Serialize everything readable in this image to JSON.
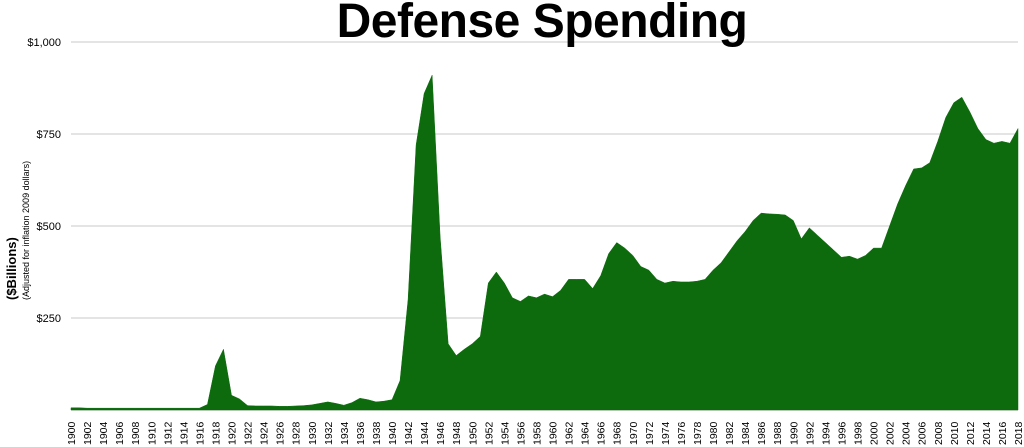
{
  "chart_data": {
    "type": "area",
    "title": "Defense Spending",
    "ylabel": "($Billions)",
    "ylabel_note": "(Adjusted for inflation 2009 dollars)",
    "xlabel": "",
    "ylim": [
      0,
      1000
    ],
    "yticks": [
      0,
      250,
      500,
      750,
      1000
    ],
    "ytick_labels": [
      "",
      "$250",
      "$500",
      "$750",
      "$1,000"
    ],
    "xlim": [
      1900,
      2018
    ],
    "xtick_labels": [
      "1900",
      "1902",
      "1904",
      "1906",
      "1908",
      "1910",
      "1912",
      "1914",
      "1916",
      "1918",
      "1920",
      "1922",
      "1924",
      "1926",
      "1928",
      "1930",
      "1932",
      "1934",
      "1936",
      "1938",
      "1940",
      "1942",
      "1944",
      "1946",
      "1948",
      "1950",
      "1952",
      "1954",
      "1956",
      "1958",
      "1960",
      "1962",
      "1964",
      "1966",
      "1968",
      "1970",
      "1972",
      "1974",
      "1976",
      "1978",
      "1980",
      "1982",
      "1984",
      "1986",
      "1988",
      "1990",
      "1992",
      "1994",
      "1996",
      "1998",
      "2000",
      "2002",
      "2004",
      "2006",
      "2008",
      "2010",
      "2012",
      "2014",
      "2016",
      "2018"
    ],
    "grid": true,
    "fill_color": "#0d6b0d",
    "series": [
      {
        "x": [
          1900,
          1901,
          1902,
          1903,
          1904,
          1905,
          1906,
          1907,
          1908,
          1909,
          1910,
          1911,
          1912,
          1913,
          1914,
          1915,
          1916,
          1917,
          1918,
          1919,
          1920,
          1921,
          1922,
          1923,
          1924,
          1925,
          1926,
          1927,
          1928,
          1929,
          1930,
          1931,
          1932,
          1933,
          1934,
          1935,
          1936,
          1937,
          1938,
          1939,
          1940,
          1941,
          1942,
          1943,
          1944,
          1945,
          1946,
          1947,
          1948,
          1949,
          1950,
          1951,
          1952,
          1953,
          1954,
          1955,
          1956,
          1957,
          1958,
          1959,
          1960,
          1961,
          1962,
          1963,
          1964,
          1965,
          1966,
          1967,
          1968,
          1969,
          1970,
          1971,
          1972,
          1973,
          1974,
          1975,
          1976,
          1977,
          1978,
          1979,
          1980,
          1981,
          1982,
          1983,
          1984,
          1985,
          1986,
          1987,
          1988,
          1989,
          1990,
          1991,
          1992,
          1993,
          1994,
          1995,
          1996,
          1997,
          1998,
          1999,
          2000,
          2001,
          2002,
          2003,
          2004,
          2005,
          2006,
          2007,
          2008,
          2009,
          2010,
          2011,
          2012,
          2013,
          2014,
          2015,
          2016,
          2017,
          2018
        ],
        "values": [
          6,
          6,
          5,
          5,
          5,
          5,
          5,
          5,
          5,
          5,
          5,
          5,
          5,
          5,
          5,
          5,
          5,
          15,
          120,
          165,
          40,
          30,
          12,
          11,
          11,
          11,
          10,
          10,
          11,
          12,
          14,
          18,
          22,
          18,
          13,
          20,
          32,
          28,
          22,
          24,
          28,
          80,
          300,
          720,
          860,
          910,
          470,
          180,
          148,
          165,
          180,
          200,
          345,
          375,
          345,
          305,
          295,
          310,
          305,
          315,
          308,
          325,
          355,
          355,
          355,
          330,
          365,
          425,
          455,
          440,
          420,
          390,
          380,
          355,
          345,
          350,
          348,
          348,
          350,
          355,
          380,
          400,
          430,
          460,
          485,
          515,
          535,
          533,
          532,
          530,
          515,
          465,
          495,
          475,
          455,
          435,
          415,
          418,
          410,
          420,
          440,
          440,
          500,
          560,
          610,
          655,
          658,
          672,
          730,
          795,
          835,
          850,
          810,
          765,
          735,
          725,
          730,
          725,
          765
        ]
      }
    ]
  }
}
